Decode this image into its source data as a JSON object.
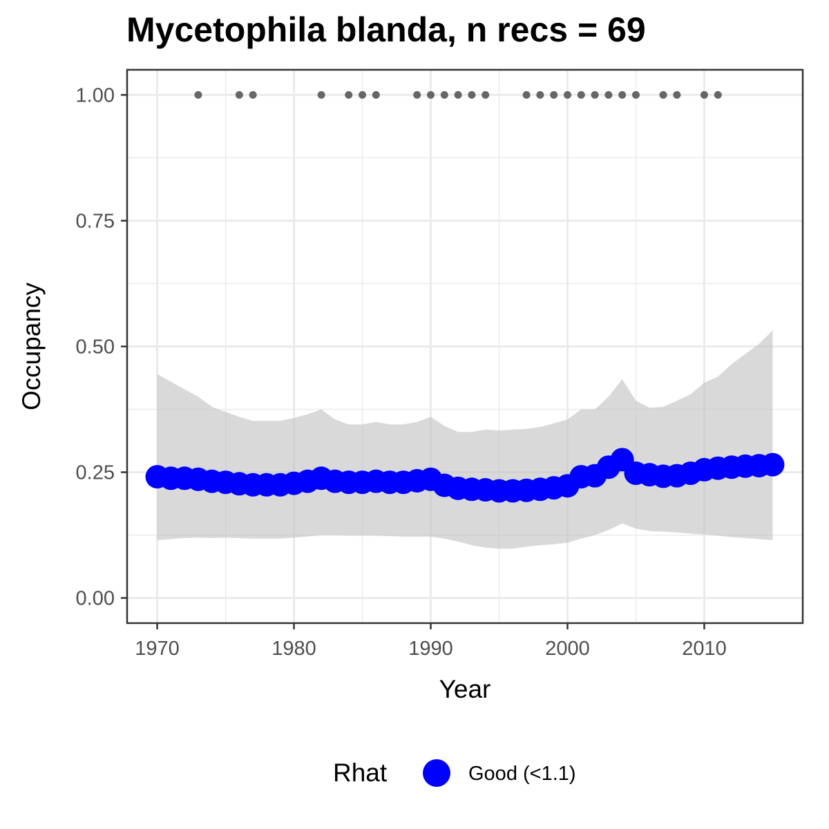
{
  "chart_data": {
    "type": "line",
    "title": "Mycetophila blanda, n recs = 69",
    "xlabel": "Year",
    "ylabel": "Occupancy",
    "xlim": [
      1967.8,
      2017.2
    ],
    "ylim": [
      -0.05,
      1.05
    ],
    "x_ticks": [
      1970,
      1980,
      1990,
      2000,
      2010
    ],
    "x_tick_labels": [
      "1970",
      "1980",
      "1990",
      "2000",
      "2010"
    ],
    "y_ticks": [
      0,
      0.25,
      0.5,
      0.75,
      1.0
    ],
    "y_tick_labels": [
      "0.00",
      "0.25",
      "0.50",
      "0.75",
      "1.00"
    ],
    "grid": true,
    "legend": {
      "position": "bottom",
      "title": "Rhat",
      "entries": [
        {
          "label": "Good (<1.1)",
          "color": "#0000ff"
        }
      ]
    },
    "colors": {
      "series": "#0000ff",
      "ribbon": "#bfbfbf",
      "records": "#666666",
      "grid": "#ebebeb",
      "panel_border": "#333333"
    },
    "series": [
      {
        "name": "Good (<1.1)",
        "x": [
          1970,
          1971,
          1972,
          1973,
          1974,
          1975,
          1976,
          1977,
          1978,
          1979,
          1980,
          1981,
          1982,
          1983,
          1984,
          1985,
          1986,
          1987,
          1988,
          1989,
          1990,
          1991,
          1992,
          1993,
          1994,
          1995,
          1996,
          1997,
          1998,
          1999,
          2000,
          2001,
          2002,
          2003,
          2004,
          2005,
          2006,
          2007,
          2008,
          2009,
          2010,
          2011,
          2012,
          2013,
          2014,
          2015
        ],
        "y": [
          0.241,
          0.238,
          0.238,
          0.236,
          0.232,
          0.23,
          0.227,
          0.225,
          0.225,
          0.225,
          0.228,
          0.232,
          0.238,
          0.232,
          0.23,
          0.23,
          0.232,
          0.23,
          0.23,
          0.233,
          0.236,
          0.224,
          0.218,
          0.216,
          0.215,
          0.213,
          0.213,
          0.214,
          0.216,
          0.219,
          0.223,
          0.241,
          0.243,
          0.26,
          0.275,
          0.248,
          0.245,
          0.242,
          0.243,
          0.248,
          0.255,
          0.258,
          0.26,
          0.262,
          0.263,
          0.265
        ],
        "lower": [
          0.115,
          0.117,
          0.119,
          0.12,
          0.119,
          0.12,
          0.119,
          0.118,
          0.118,
          0.118,
          0.12,
          0.122,
          0.125,
          0.125,
          0.124,
          0.124,
          0.124,
          0.123,
          0.122,
          0.122,
          0.122,
          0.118,
          0.112,
          0.105,
          0.1,
          0.098,
          0.098,
          0.102,
          0.105,
          0.107,
          0.11,
          0.118,
          0.125,
          0.135,
          0.148,
          0.138,
          0.133,
          0.132,
          0.13,
          0.128,
          0.126,
          0.124,
          0.121,
          0.119,
          0.117,
          0.115
        ],
        "upper": [
          0.445,
          0.43,
          0.415,
          0.4,
          0.38,
          0.37,
          0.36,
          0.352,
          0.352,
          0.352,
          0.358,
          0.365,
          0.375,
          0.355,
          0.345,
          0.345,
          0.35,
          0.345,
          0.345,
          0.35,
          0.36,
          0.342,
          0.33,
          0.33,
          0.335,
          0.333,
          0.335,
          0.336,
          0.34,
          0.347,
          0.355,
          0.375,
          0.375,
          0.4,
          0.435,
          0.392,
          0.378,
          0.38,
          0.392,
          0.405,
          0.428,
          0.44,
          0.465,
          0.485,
          0.505,
          0.532
        ]
      }
    ],
    "records": {
      "y": 1.0,
      "x": [
        1973,
        1976,
        1977,
        1982,
        1984,
        1985,
        1986,
        1989,
        1990,
        1991,
        1992,
        1993,
        1994,
        1997,
        1998,
        1999,
        2000,
        2001,
        2002,
        2003,
        2004,
        2005,
        2007,
        2008,
        2010,
        2011
      ]
    }
  }
}
